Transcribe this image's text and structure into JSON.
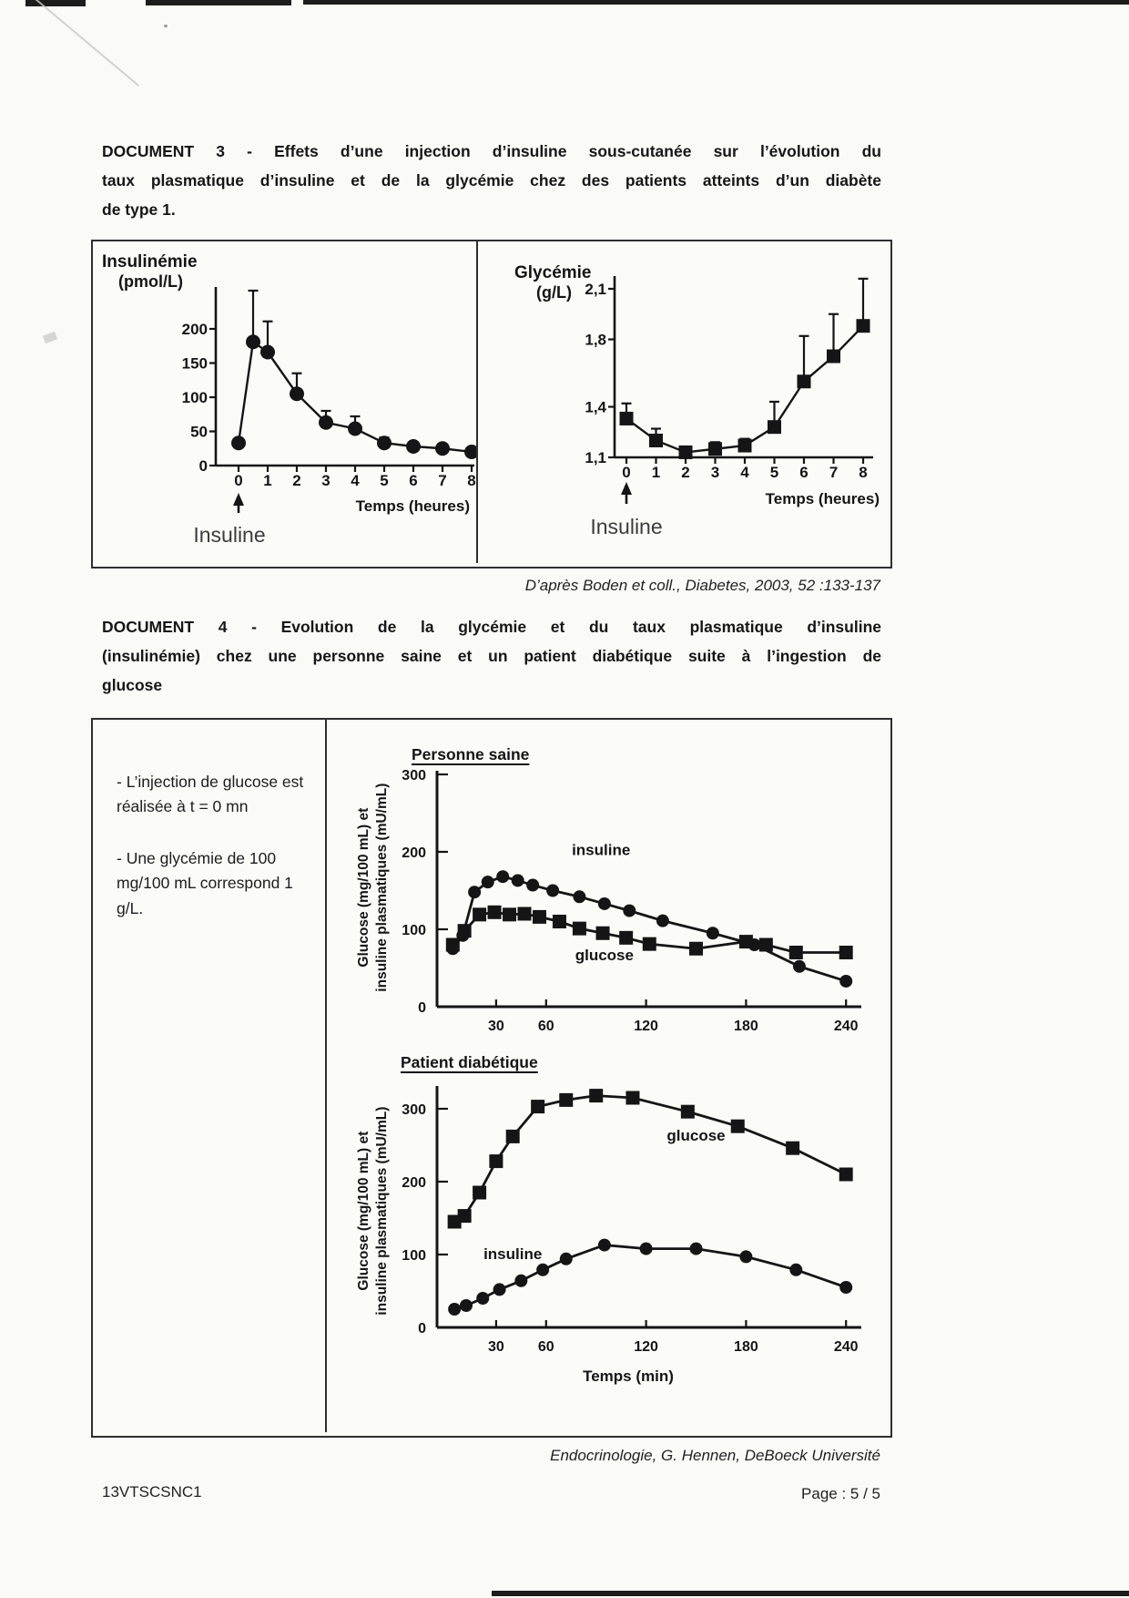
{
  "document3": {
    "heading_lines": [
      "DOCUMENT 3 - Effets d’une injection d’insuline sous-cutanée sur l’évolution du",
      "taux plasmatique d’insuline et de la glycémie chez des patients atteints d’un diabète",
      "de type 1."
    ],
    "source": "D’après Boden et coll., Diabetes, 2003, 52 :133-137"
  },
  "document4": {
    "heading_lines": [
      "DOCUMENT 4 - Evolution de la glycémie et du taux plasmatique d’insuline",
      "(insulinémie) chez une personne saine et un patient diabétique suite à l’ingestion de",
      "glucose"
    ],
    "notes": {
      "injection": "- L’injection de glucose est réalisée à t = 0 mn",
      "conversion": "- Une glycémie de 100 mg/100 mL correspond 1 g/L."
    },
    "source": "Endocrinologie, G. Hennen, DeBoeck Université"
  },
  "footer": {
    "code": "13VTSCSNC1",
    "page": "Page : 5 / 5"
  },
  "chart_data": [
    {
      "id": "doc3-insulinemie",
      "type": "line",
      "ylabel_lines": [
        "Insulinémie",
        "(pmol/L)"
      ],
      "xlabel": "Temps (heures)",
      "injection_label": "Insuline",
      "yticks": [
        0,
        50,
        100,
        150,
        200
      ],
      "ytick_labels": [
        "0",
        "50",
        "100",
        "150",
        "200"
      ],
      "xticks": [
        0,
        1,
        2,
        3,
        4,
        5,
        6,
        7,
        8
      ],
      "ylim": [
        0,
        260
      ],
      "xlim": [
        0,
        8.2
      ],
      "series": [
        {
          "name": "insulinémie",
          "marker": "circle",
          "x": [
            0,
            0.5,
            1,
            2,
            3,
            4,
            5,
            6,
            7,
            8
          ],
          "y": [
            33,
            181,
            166,
            105,
            63,
            54,
            33,
            28,
            25,
            20
          ],
          "err": [
            0,
            75,
            45,
            30,
            17,
            18,
            8,
            6,
            5,
            4
          ]
        }
      ]
    },
    {
      "id": "doc3-glycemie",
      "type": "line",
      "ylabel_lines": [
        "Glycémie",
        "(g/L)"
      ],
      "xlabel": "Temps (heures)",
      "injection_label": "Insuline",
      "yticks": [
        1.1,
        1.4,
        1.8,
        2.1
      ],
      "ytick_labels": [
        "1,1",
        "1,4",
        "1,8",
        "2,1"
      ],
      "xticks": [
        0,
        1,
        2,
        3,
        4,
        5,
        6,
        7,
        8
      ],
      "ylim": [
        1.1,
        2.2
      ],
      "xlim": [
        0,
        8.2
      ],
      "series": [
        {
          "name": "glycémie",
          "marker": "square",
          "x": [
            0,
            1,
            2,
            3,
            4,
            5,
            6,
            7,
            8
          ],
          "y": [
            1.33,
            1.2,
            1.13,
            1.15,
            1.17,
            1.28,
            1.55,
            1.7,
            1.88
          ],
          "err": [
            0.09,
            0.07,
            0.03,
            0.04,
            0.04,
            0.15,
            0.27,
            0.25,
            0.28
          ]
        }
      ]
    },
    {
      "id": "doc4-personne-saine",
      "type": "line",
      "title": "Personne saine",
      "ylabel_lines": [
        "Glucose (mg/100 mL) et",
        "insuline plasmatiques (mU/mL)"
      ],
      "yticks": [
        0,
        100,
        200,
        300
      ],
      "ytick_labels": [
        "0",
        "100",
        "200",
        "300"
      ],
      "xticks": [
        30,
        60,
        120,
        180,
        240
      ],
      "ylim": [
        0,
        320
      ],
      "xlim": [
        0,
        250
      ],
      "labels": [
        {
          "text": "insuline",
          "x": 93,
          "y": 196
        },
        {
          "text": "glucose",
          "x": 95,
          "y": 60
        }
      ],
      "series": [
        {
          "name": "insuline",
          "marker": "circle",
          "x": [
            4,
            10,
            17,
            25,
            34,
            43,
            52,
            64,
            80,
            95,
            110,
            130,
            160,
            185,
            212,
            240
          ],
          "y": [
            75,
            92,
            148,
            161,
            168,
            163,
            157,
            150,
            142,
            133,
            124,
            111,
            95,
            80,
            52,
            33
          ]
        },
        {
          "name": "glucose",
          "marker": "square",
          "x": [
            4,
            11,
            20,
            29,
            38,
            47,
            56,
            68,
            80,
            94,
            108,
            122,
            150,
            180,
            192,
            210,
            240
          ],
          "y": [
            80,
            98,
            119,
            122,
            119,
            120,
            116,
            110,
            101,
            95,
            89,
            81,
            75,
            84,
            80,
            70,
            70
          ]
        }
      ]
    },
    {
      "id": "doc4-patient-diabetique",
      "type": "line",
      "title": "Patient diabétique",
      "ylabel_lines": [
        "Glucose (mg/100 mL) et",
        "insuline plasmatiques (mU/mL)"
      ],
      "xlabel": "Temps (min)",
      "yticks": [
        0,
        100,
        200,
        300
      ],
      "ytick_labels": [
        "0",
        "100",
        "200",
        "300"
      ],
      "xticks": [
        30,
        60,
        120,
        180,
        240
      ],
      "ylim": [
        0,
        330
      ],
      "xlim": [
        0,
        250
      ],
      "labels": [
        {
          "text": "glucose",
          "x": 150,
          "y": 256
        },
        {
          "text": "insuline",
          "x": 40,
          "y": 94
        }
      ],
      "series": [
        {
          "name": "glucose",
          "marker": "square",
          "x": [
            5,
            11,
            20,
            30,
            40,
            55,
            72,
            90,
            112,
            145,
            175,
            208,
            240
          ],
          "y": [
            145,
            153,
            185,
            228,
            262,
            303,
            312,
            318,
            315,
            296,
            276,
            246,
            210
          ]
        },
        {
          "name": "insuline",
          "marker": "circle",
          "x": [
            5,
            12,
            22,
            32,
            45,
            58,
            72,
            95,
            120,
            150,
            180,
            210,
            240
          ],
          "y": [
            25,
            30,
            40,
            52,
            64,
            79,
            94,
            113,
            108,
            108,
            97,
            79,
            55
          ]
        }
      ]
    }
  ]
}
